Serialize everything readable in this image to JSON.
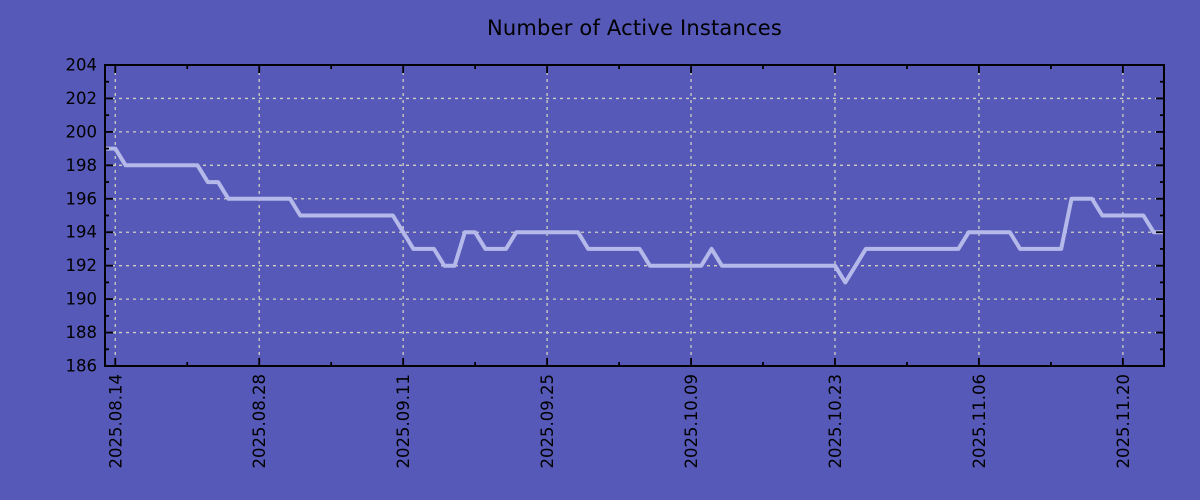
{
  "colors": {
    "background": "#5659b8",
    "line": "#b4b9ea",
    "grid": "#cfcfc2",
    "axis": "#000000",
    "text": "#000000"
  },
  "chart_data": {
    "type": "line",
    "title": "Number of Active Instances",
    "xlabel": "",
    "ylabel": "",
    "grid": true,
    "legend": "none",
    "ylim": [
      186,
      204
    ],
    "y_major_ticks": [
      186,
      188,
      190,
      192,
      194,
      196,
      198,
      200,
      202,
      204
    ],
    "x_tick_labels": [
      "2025.08.14",
      "2025.08.28",
      "2025.09.11",
      "2025.09.25",
      "2025.10.09",
      "2025.10.23",
      "2025.11.06",
      "2025.11.20"
    ],
    "x_tick_day_offsets": [
      1,
      15,
      29,
      43,
      57,
      71,
      85,
      99
    ],
    "x_start_date": "2025.08.13",
    "x_end_date": "2025.11.24",
    "sampling": "daily",
    "series": [
      {
        "name": "Number of Active Instances",
        "color": "#b4b9ea",
        "daily_values": [
          199,
          199,
          198,
          198,
          198,
          198,
          198,
          198,
          198,
          198,
          197,
          197,
          196,
          196,
          196,
          196,
          196,
          196,
          196,
          195,
          195,
          195,
          195,
          195,
          195,
          195,
          195,
          195,
          195,
          194,
          193,
          193,
          193,
          192,
          192,
          194,
          194,
          193,
          193,
          193,
          194,
          194,
          194,
          194,
          194,
          194,
          194,
          193,
          193,
          193,
          193,
          193,
          193,
          192,
          192,
          192,
          192,
          192,
          192,
          193,
          192,
          192,
          192,
          192,
          192,
          192,
          192,
          192,
          192,
          192,
          192,
          192,
          191,
          192,
          193,
          193,
          193,
          193,
          193,
          193,
          193,
          193,
          193,
          193,
          194,
          194,
          194,
          194,
          194,
          193,
          193,
          193,
          193,
          193,
          196,
          196,
          196,
          195,
          195,
          195,
          195,
          195,
          194,
          194
        ]
      }
    ]
  }
}
